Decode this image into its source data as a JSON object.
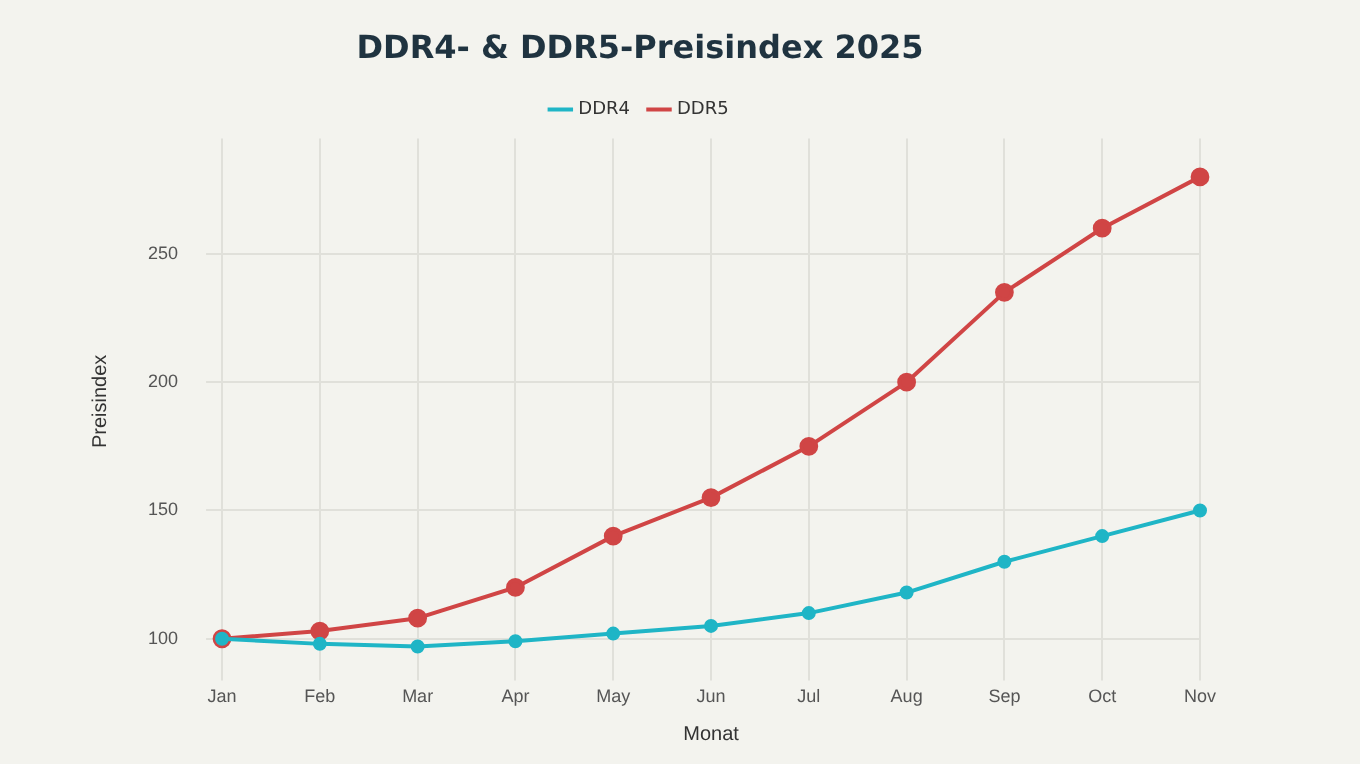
{
  "chart_data": {
    "type": "line",
    "title": "DDR4- & DDR5-Preisindex 2025",
    "xlabel": "Monat",
    "ylabel": "Preisindex",
    "categories": [
      "Jan",
      "Feb",
      "Mar",
      "Apr",
      "May",
      "Jun",
      "Jul",
      "Aug",
      "Sep",
      "Oct",
      "Nov"
    ],
    "series": [
      {
        "name": "DDR4",
        "color": "#1fb5c6",
        "values": [
          100,
          98,
          97,
          99,
          102,
          105,
          110,
          118,
          130,
          140,
          150
        ]
      },
      {
        "name": "DDR5",
        "color": "#d04545",
        "values": [
          100,
          103,
          108,
          120,
          140,
          155,
          175,
          200,
          235,
          260,
          280
        ]
      }
    ],
    "ylim": [
      90,
      295
    ],
    "yticks": [
      100,
      150,
      200,
      250
    ],
    "grid": true,
    "legend": "top",
    "marker": "circle",
    "line_style": "solid"
  }
}
